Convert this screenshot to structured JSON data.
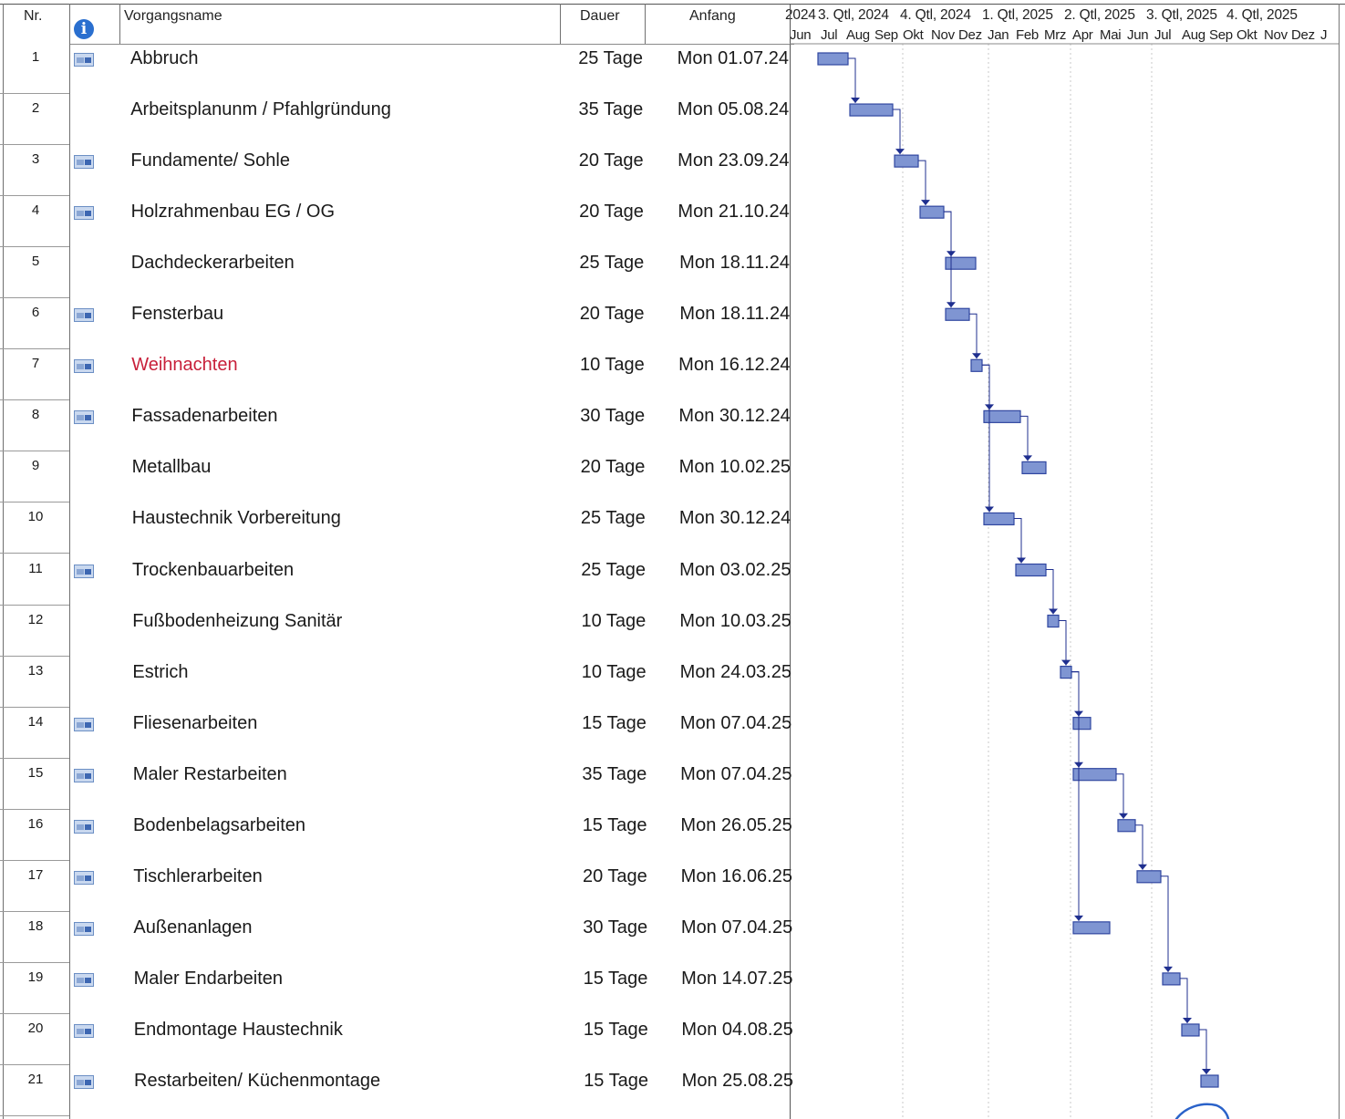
{
  "header": {
    "col_nr": "Nr.",
    "col_info_icon": "info-icon",
    "col_name": "Vorgangsname",
    "col_duration": "Dauer",
    "col_start": "Anfang"
  },
  "timescale": {
    "quarters": [
      "2024",
      "3. Qtl, 2024",
      "4. Qtl, 2024",
      "1. Qtl, 2025",
      "2. Qtl, 2025",
      "3. Qtl, 2025",
      "4. Qtl, 2025"
    ],
    "months": [
      "Jun",
      "Jul",
      "Aug",
      "Sep",
      "Okt",
      "Nov",
      "Dez",
      "Jan",
      "Feb",
      "Mrz",
      "Apr",
      "Mai",
      "Jun",
      "Jul",
      "Aug",
      "Sep",
      "Okt",
      "Nov",
      "Dez",
      "J"
    ]
  },
  "tasks": [
    {
      "nr": "1",
      "icon": true,
      "name": "Abbruch",
      "duration": "25 Tage",
      "start": "Mon 01.07.24",
      "highlight": false
    },
    {
      "nr": "2",
      "icon": false,
      "name": "Arbeitsplanunm / Pfahlgründung",
      "duration": "35 Tage",
      "start": "Mon 05.08.24",
      "highlight": false
    },
    {
      "nr": "3",
      "icon": true,
      "name": "Fundamente/ Sohle",
      "duration": "20 Tage",
      "start": "Mon 23.09.24",
      "highlight": false
    },
    {
      "nr": "4",
      "icon": true,
      "name": "Holzrahmenbau EG / OG",
      "duration": "20 Tage",
      "start": "Mon 21.10.24",
      "highlight": false
    },
    {
      "nr": "5",
      "icon": false,
      "name": "Dachdeckerarbeiten",
      "duration": "25 Tage",
      "start": "Mon 18.11.24",
      "highlight": false
    },
    {
      "nr": "6",
      "icon": true,
      "name": "Fensterbau",
      "duration": "20 Tage",
      "start": "Mon 18.11.24",
      "highlight": false
    },
    {
      "nr": "7",
      "icon": true,
      "name": "Weihnachten",
      "duration": "10 Tage",
      "start": "Mon 16.12.24",
      "highlight": true
    },
    {
      "nr": "8",
      "icon": true,
      "name": "Fassadenarbeiten",
      "duration": "30 Tage",
      "start": "Mon 30.12.24",
      "highlight": false
    },
    {
      "nr": "9",
      "icon": false,
      "name": "Metallbau",
      "duration": "20 Tage",
      "start": "Mon 10.02.25",
      "highlight": false
    },
    {
      "nr": "10",
      "icon": false,
      "name": "Haustechnik Vorbereitung",
      "duration": "25 Tage",
      "start": "Mon 30.12.24",
      "highlight": false
    },
    {
      "nr": "11",
      "icon": true,
      "name": "Trockenbauarbeiten",
      "duration": "25 Tage",
      "start": "Mon 03.02.25",
      "highlight": false
    },
    {
      "nr": "12",
      "icon": false,
      "name": "Fußbodenheizung Sanitär",
      "duration": "10 Tage",
      "start": "Mon 10.03.25",
      "highlight": false
    },
    {
      "nr": "13",
      "icon": false,
      "name": "Estrich",
      "duration": "10 Tage",
      "start": "Mon 24.03.25",
      "highlight": false
    },
    {
      "nr": "14",
      "icon": true,
      "name": "Fliesenarbeiten",
      "duration": "15 Tage",
      "start": "Mon 07.04.25",
      "highlight": false
    },
    {
      "nr": "15",
      "icon": true,
      "name": "Maler Restarbeiten",
      "duration": "35 Tage",
      "start": "Mon 07.04.25",
      "highlight": false
    },
    {
      "nr": "16",
      "icon": true,
      "name": "Bodenbelagsarbeiten",
      "duration": "15 Tage",
      "start": "Mon 26.05.25",
      "highlight": false
    },
    {
      "nr": "17",
      "icon": true,
      "name": "Tischlerarbeiten",
      "duration": "20 Tage",
      "start": "Mon 16.06.25",
      "highlight": false
    },
    {
      "nr": "18",
      "icon": true,
      "name": "Außenanlagen",
      "duration": "30 Tage",
      "start": "Mon 07.04.25",
      "highlight": false
    },
    {
      "nr": "19",
      "icon": true,
      "name": "Maler Endarbeiten",
      "duration": "15 Tage",
      "start": "Mon 14.07.25",
      "highlight": false
    },
    {
      "nr": "20",
      "icon": true,
      "name": "Endmontage Haustechnik",
      "duration": "15 Tage",
      "start": "Mon 04.08.25",
      "highlight": false
    },
    {
      "nr": "21",
      "icon": true,
      "name": "Restarbeiten/ Küchenmontage",
      "duration": "15 Tage",
      "start": "Mon 25.08.25",
      "highlight": false
    }
  ],
  "links": [
    [
      1,
      2
    ],
    [
      2,
      3
    ],
    [
      3,
      4
    ],
    [
      4,
      5
    ],
    [
      4,
      6
    ],
    [
      6,
      7
    ],
    [
      7,
      8
    ],
    [
      7,
      10
    ],
    [
      8,
      9
    ],
    [
      10,
      11
    ],
    [
      11,
      12
    ],
    [
      12,
      13
    ],
    [
      13,
      14
    ],
    [
      13,
      15
    ],
    [
      13,
      18
    ],
    [
      15,
      16
    ],
    [
      16,
      17
    ],
    [
      17,
      19
    ],
    [
      19,
      20
    ],
    [
      20,
      21
    ]
  ],
  "colors": {
    "bar_fill": "#7f95d2",
    "bar_border": "#3046a0",
    "link_line": "#1f2f8f",
    "highlight_text": "#c8203a",
    "annotation_pen": "#2a62c9"
  }
}
